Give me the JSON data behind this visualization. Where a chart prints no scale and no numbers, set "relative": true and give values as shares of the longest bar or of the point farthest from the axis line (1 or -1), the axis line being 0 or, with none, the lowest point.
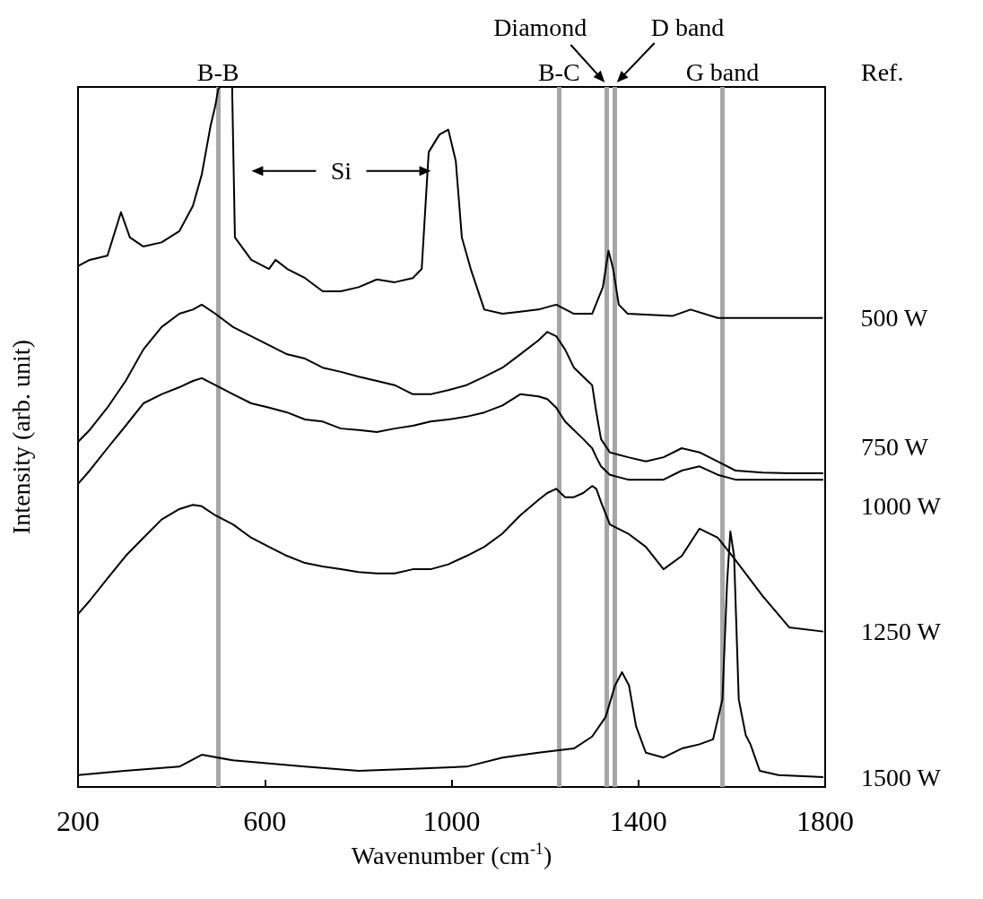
{
  "chart_data": {
    "type": "line",
    "relative": true,
    "xlabel": "Wavenumber (cm$^{-1}$)",
    "ylabel": "Intensity (arb. unit)",
    "xlim": [
      200,
      1800
    ],
    "xticks": [
      200,
      600,
      1000,
      1400,
      1800
    ],
    "grid": false,
    "legend": false,
    "marker": "none",
    "series": [
      {
        "name": "500 W",
        "color": "#000000",
        "x": [
          200,
          225,
          263,
          292,
          311,
          340,
          379,
          417,
          446,
          465,
          484,
          494,
          500,
          503,
          530,
          536,
          571,
          609,
          623,
          648,
          686,
          724,
          763,
          801,
          840,
          878,
          917,
          936,
          951,
          974,
          993,
          1009,
          1022,
          1041,
          1070,
          1109,
          1147,
          1186,
          1224,
          1262,
          1301,
          1324,
          1336,
          1346,
          1358,
          1377,
          1474,
          1512,
          1570,
          1666,
          1724,
          1795
        ],
        "values": [
          0.744,
          0.753,
          0.759,
          0.821,
          0.785,
          0.772,
          0.778,
          0.794,
          0.83,
          0.875,
          0.945,
          0.973,
          0.996,
          1.0,
          1.0,
          0.785,
          0.753,
          0.74,
          0.753,
          0.74,
          0.727,
          0.708,
          0.708,
          0.714,
          0.725,
          0.721,
          0.727,
          0.74,
          0.907,
          0.932,
          0.939,
          0.894,
          0.785,
          0.74,
          0.682,
          0.676,
          0.679,
          0.682,
          0.689,
          0.676,
          0.676,
          0.714,
          0.766,
          0.74,
          0.689,
          0.676,
          0.673,
          0.682,
          0.67,
          0.67,
          0.67,
          0.67
        ]
      },
      {
        "name": "750 W",
        "color": "#000000",
        "x": [
          200,
          225,
          263,
          302,
          340,
          379,
          417,
          446,
          465,
          494,
          532,
          571,
          609,
          648,
          686,
          724,
          763,
          801,
          840,
          878,
          917,
          955,
          993,
          1032,
          1070,
          1109,
          1147,
          1186,
          1205,
          1224,
          1243,
          1262,
          1282,
          1301,
          1310,
          1320,
          1339,
          1378,
          1416,
          1454,
          1493,
          1531,
          1570,
          1608,
          1666,
          1723,
          1796
        ],
        "values": [
          0.493,
          0.51,
          0.542,
          0.58,
          0.625,
          0.657,
          0.676,
          0.682,
          0.689,
          0.676,
          0.657,
          0.644,
          0.631,
          0.618,
          0.612,
          0.599,
          0.593,
          0.586,
          0.58,
          0.574,
          0.561,
          0.561,
          0.567,
          0.574,
          0.586,
          0.599,
          0.618,
          0.638,
          0.65,
          0.644,
          0.625,
          0.599,
          0.586,
          0.574,
          0.535,
          0.497,
          0.478,
          0.471,
          0.465,
          0.471,
          0.484,
          0.478,
          0.465,
          0.452,
          0.449,
          0.448,
          0.448
        ]
      },
      {
        "name": "1000 W",
        "color": "#000000",
        "x": [
          200,
          225,
          263,
          302,
          340,
          379,
          417,
          446,
          465,
          494,
          532,
          571,
          609,
          648,
          686,
          724,
          763,
          801,
          840,
          878,
          917,
          955,
          993,
          1032,
          1070,
          1109,
          1147,
          1186,
          1205,
          1224,
          1243,
          1262,
          1282,
          1301,
          1310,
          1320,
          1339,
          1378,
          1416,
          1454,
          1493,
          1531,
          1570,
          1608,
          1666,
          1723,
          1796
        ],
        "values": [
          0.433,
          0.452,
          0.484,
          0.516,
          0.548,
          0.561,
          0.571,
          0.58,
          0.584,
          0.574,
          0.561,
          0.548,
          0.542,
          0.535,
          0.525,
          0.522,
          0.512,
          0.51,
          0.507,
          0.512,
          0.516,
          0.522,
          0.525,
          0.529,
          0.535,
          0.545,
          0.561,
          0.558,
          0.554,
          0.542,
          0.522,
          0.51,
          0.497,
          0.484,
          0.471,
          0.458,
          0.446,
          0.439,
          0.439,
          0.439,
          0.452,
          0.458,
          0.446,
          0.439,
          0.439,
          0.439,
          0.439
        ]
      },
      {
        "name": "1250 W",
        "color": "#000000",
        "x": [
          200,
          225,
          263,
          302,
          340,
          379,
          417,
          446,
          465,
          494,
          532,
          571,
          609,
          648,
          686,
          724,
          763,
          801,
          840,
          878,
          917,
          955,
          993,
          1032,
          1070,
          1109,
          1147,
          1186,
          1205,
          1224,
          1243,
          1262,
          1282,
          1301,
          1310,
          1320,
          1339,
          1378,
          1416,
          1454,
          1493,
          1531,
          1570,
          1608,
          1666,
          1723,
          1796
        ],
        "values": [
          0.247,
          0.266,
          0.298,
          0.33,
          0.356,
          0.382,
          0.397,
          0.403,
          0.401,
          0.388,
          0.375,
          0.356,
          0.343,
          0.33,
          0.32,
          0.315,
          0.311,
          0.307,
          0.305,
          0.305,
          0.311,
          0.311,
          0.318,
          0.33,
          0.343,
          0.362,
          0.388,
          0.41,
          0.42,
          0.426,
          0.414,
          0.414,
          0.42,
          0.43,
          0.426,
          0.407,
          0.375,
          0.362,
          0.343,
          0.311,
          0.33,
          0.369,
          0.356,
          0.324,
          0.273,
          0.228,
          0.222
        ]
      },
      {
        "name": "1500 W",
        "color": "#000000",
        "x": [
          200,
          300,
          417,
          465,
          532,
          686,
          801,
          917,
          1032,
          1109,
          1186,
          1262,
          1301,
          1330,
          1350,
          1365,
          1380,
          1395,
          1416,
          1454,
          1493,
          1531,
          1560,
          1580,
          1590,
          1597,
          1605,
          1615,
          1630,
          1640,
          1660,
          1700,
          1796
        ],
        "values": [
          0.017,
          0.023,
          0.029,
          0.046,
          0.038,
          0.029,
          0.023,
          0.026,
          0.029,
          0.042,
          0.049,
          0.055,
          0.072,
          0.1,
          0.145,
          0.164,
          0.145,
          0.087,
          0.049,
          0.042,
          0.055,
          0.061,
          0.068,
          0.125,
          0.292,
          0.365,
          0.33,
          0.125,
          0.074,
          0.061,
          0.023,
          0.017,
          0.014
        ]
      }
    ],
    "ref_lines": [
      {
        "axis": "x",
        "value": 500,
        "label": "B-B",
        "color": "#a6a6a6"
      },
      {
        "axis": "x",
        "value": 1230,
        "label": "B-C",
        "color": "#a6a6a6"
      },
      {
        "axis": "x",
        "value": 1332,
        "label": "Diamond",
        "color": "#a6a6a6"
      },
      {
        "axis": "x",
        "value": 1350,
        "label": "D band",
        "color": "#a6a6a6"
      },
      {
        "axis": "x",
        "value": 1580,
        "label": "G band",
        "color": "#a6a6a6"
      }
    ],
    "annotations": [
      "Ref.",
      "Si"
    ]
  }
}
